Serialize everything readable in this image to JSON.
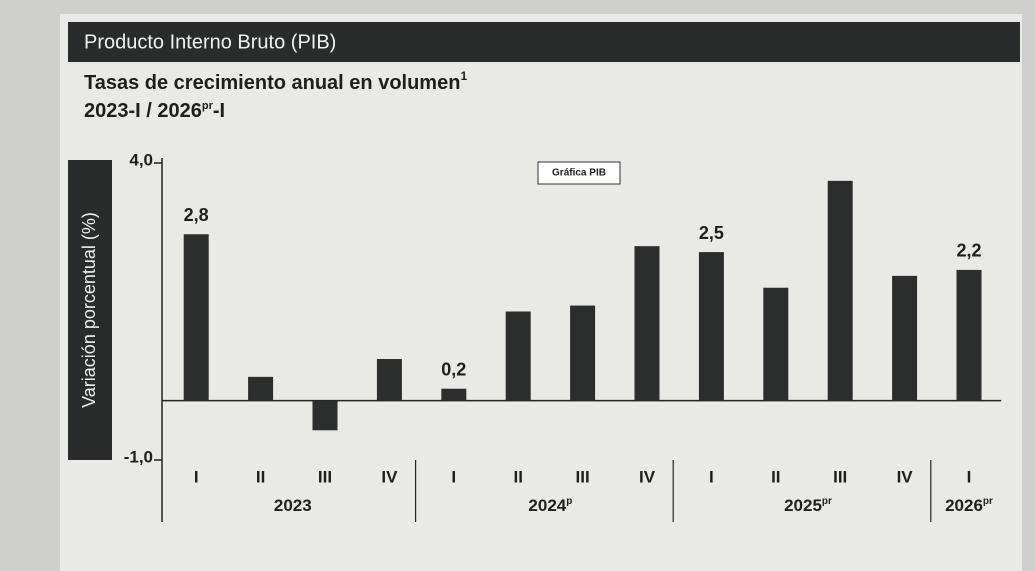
{
  "chart_data": {
    "type": "bar",
    "header": "Producto Interno Bruto (PIB)",
    "title": {
      "text": "Tasas de crecimiento anual en volumen",
      "sup": "1"
    },
    "subtitle": {
      "start": "2023-I / 2026",
      "sup": "pr",
      "end": "-I"
    },
    "annotation": "Gráfica PIB",
    "y_label": "Variación porcentual (%)",
    "categories": [
      "I",
      "II",
      "III",
      "IV",
      "I",
      "II",
      "III",
      "IV",
      "I",
      "II",
      "III",
      "IV",
      "I"
    ],
    "groups": [
      {
        "label": "2023"
      },
      {
        "label": "2024",
        "sup": "p"
      },
      {
        "label": "2025",
        "sup": "pr"
      },
      {
        "label": "2026",
        "sup": "pr"
      }
    ],
    "values": [
      2.8,
      0.4,
      -0.5,
      0.7,
      0.2,
      1.5,
      1.6,
      2.6,
      2.5,
      1.9,
      3.7,
      2.1,
      2.2
    ],
    "value_labels": [
      "2,8",
      null,
      null,
      null,
      "0,2",
      null,
      null,
      null,
      "2,5",
      null,
      null,
      null,
      "2,2"
    ],
    "color": "#2b2e2c",
    "ylim": [
      -1,
      4
    ],
    "yticks": [
      {
        "value": 4,
        "label": "4,0"
      },
      {
        "value": -1,
        "label": "-1,0"
      }
    ]
  }
}
